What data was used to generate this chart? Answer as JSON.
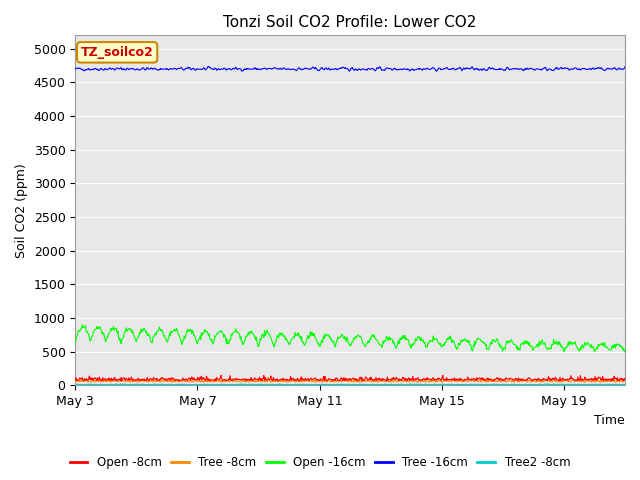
{
  "title": "Tonzi Soil CO2 Profile: Lower CO2",
  "ylabel": "Soil CO2 (ppm)",
  "xlabel": "Time",
  "annotation_text": "TZ_soilco2",
  "annotation_bg": "#ffffcc",
  "annotation_border": "#cc8800",
  "annotation_text_color": "#cc0000",
  "ylim": [
    0,
    5200
  ],
  "yticks": [
    0,
    500,
    1000,
    1500,
    2000,
    2500,
    3000,
    3500,
    4000,
    4500,
    5000
  ],
  "fig_bg": "#ffffff",
  "plot_bg": "#e8e8e8",
  "n_days": 18,
  "colors": {
    "open8": "#ff0000",
    "tree8": "#ff8800",
    "open16": "#00ff00",
    "tree16": "#0000ff",
    "tree2_8": "#00cccc"
  },
  "legend_labels": [
    "Open -8cm",
    "Tree -8cm",
    "Open -16cm",
    "Tree -16cm",
    "Tree2 -8cm"
  ],
  "legend_colors": [
    "#ff0000",
    "#ff8800",
    "#00ff00",
    "#0000ff",
    "#00cccc"
  ],
  "x_tick_positions": [
    0,
    4,
    8,
    12,
    16
  ],
  "x_tick_labels": [
    "May 3",
    "May 7",
    "May 11",
    "May 15",
    "May 19"
  ],
  "grid_color": "#ffffff",
  "linewidth": 0.8
}
